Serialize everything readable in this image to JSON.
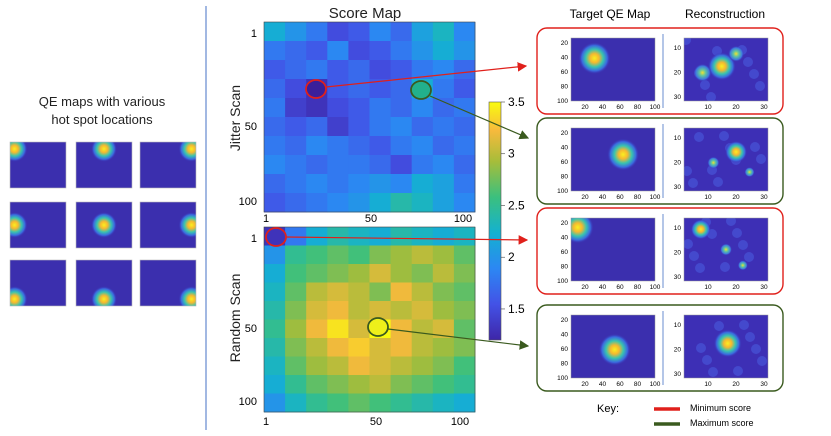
{
  "left_panel": {
    "title_line1": "QE maps with various",
    "title_line2": "hot spot locations"
  },
  "score_map": {
    "title": "Score Map",
    "jitter_label": "Jitter Scan",
    "random_label": "Random Scan",
    "y_ticks": [
      "1",
      "50",
      "100"
    ],
    "x_ticks": [
      "1",
      "50",
      "100"
    ],
    "colorbar": {
      "min": 1.2,
      "max": 3.5,
      "ticks": [
        "3.5",
        "3",
        "2.5",
        "2",
        "1.5"
      ]
    },
    "jitter_grid": [
      [
        2.2,
        2.0,
        1.8,
        1.5,
        1.6,
        1.9,
        1.7,
        2.1,
        2.3,
        1.9
      ],
      [
        1.8,
        1.7,
        1.6,
        1.9,
        1.5,
        1.6,
        1.8,
        2.0,
        2.2,
        2.0
      ],
      [
        1.6,
        1.7,
        1.8,
        1.6,
        1.7,
        1.5,
        1.6,
        1.8,
        1.9,
        1.7
      ],
      [
        1.7,
        1.5,
        1.3,
        1.6,
        1.7,
        1.6,
        1.7,
        2.2,
        1.8,
        1.6
      ],
      [
        1.8,
        1.4,
        1.3,
        1.5,
        1.6,
        1.8,
        1.7,
        1.9,
        1.7,
        1.8
      ],
      [
        1.7,
        1.6,
        1.7,
        1.4,
        1.6,
        1.8,
        1.9,
        1.7,
        1.8,
        1.7
      ],
      [
        1.8,
        1.7,
        1.9,
        1.8,
        1.7,
        1.6,
        1.8,
        1.9,
        1.7,
        1.8
      ],
      [
        1.9,
        1.8,
        1.7,
        1.8,
        1.8,
        1.7,
        1.5,
        1.8,
        1.9,
        1.7
      ],
      [
        1.7,
        1.8,
        1.9,
        1.8,
        1.9,
        2.0,
        1.9,
        2.2,
        2.1,
        1.8
      ],
      [
        1.6,
        1.7,
        1.8,
        1.9,
        2.0,
        2.2,
        2.4,
        2.3,
        2.1,
        1.9
      ]
    ],
    "random_grid": [
      [
        1.3,
        1.8,
        2.2,
        2.4,
        2.3,
        2.2,
        2.4,
        2.3,
        2.2,
        2.3
      ],
      [
        2.0,
        2.5,
        2.6,
        2.7,
        2.6,
        2.8,
        2.9,
        3.0,
        2.9,
        2.7
      ],
      [
        2.2,
        2.6,
        2.7,
        2.8,
        2.9,
        3.1,
        2.9,
        2.8,
        3.0,
        2.8
      ],
      [
        2.3,
        2.7,
        3.0,
        3.1,
        3.0,
        2.8,
        3.2,
        3.0,
        2.8,
        2.7
      ],
      [
        2.4,
        2.8,
        3.1,
        3.2,
        3.0,
        3.1,
        3.0,
        3.1,
        2.9,
        2.8
      ],
      [
        2.5,
        2.9,
        3.2,
        3.4,
        3.1,
        3.5,
        3.2,
        3.0,
        3.1,
        2.7
      ],
      [
        2.4,
        2.8,
        3.0,
        3.2,
        3.3,
        3.1,
        3.2,
        3.0,
        2.9,
        2.8
      ],
      [
        2.3,
        2.7,
        2.9,
        3.0,
        3.2,
        3.1,
        3.0,
        2.9,
        2.8,
        2.6
      ],
      [
        2.2,
        2.5,
        2.7,
        2.8,
        2.9,
        3.0,
        2.8,
        2.7,
        2.6,
        2.5
      ],
      [
        2.0,
        2.3,
        2.5,
        2.6,
        2.7,
        2.6,
        2.5,
        2.4,
        2.3,
        2.2
      ]
    ]
  },
  "right_panel": {
    "target_title": "Target QE Map",
    "recon_title": "Reconstruction",
    "target_y_ticks": [
      "20",
      "40",
      "60",
      "80",
      "100"
    ],
    "target_x_ticks": [
      "20",
      "40",
      "60",
      "80",
      "100"
    ],
    "recon_y_ticks": [
      "10",
      "20",
      "30"
    ],
    "recon_x_ticks": [
      "10",
      "20",
      "30"
    ]
  },
  "key": {
    "label": "Key:",
    "min_label": "Minimum score",
    "max_label": "Maximum score"
  },
  "colors": {
    "min_red": "#e0201b",
    "max_green": "#3a5a1e",
    "separator_blue": "#4472c4"
  }
}
